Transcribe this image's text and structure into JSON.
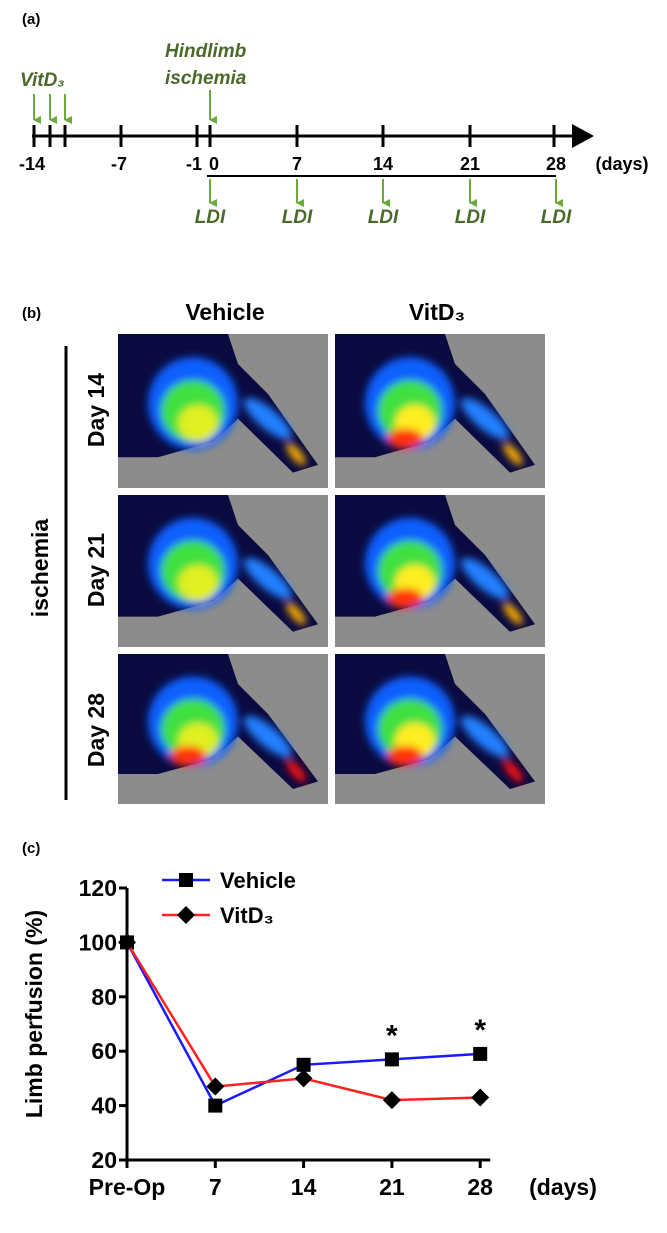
{
  "panel_a": {
    "label": "(a)",
    "vitd": "VitD₃",
    "hindlimb": "Hindlimb",
    "ischemia": "ischemia",
    "ticks": [
      "-14",
      "-7",
      "-1",
      "0",
      "7",
      "14",
      "21",
      "28"
    ],
    "unit": "(days)",
    "ldi": [
      "LDI",
      "LDI",
      "LDI",
      "LDI",
      "LDI"
    ]
  },
  "panel_b": {
    "label": "(b)",
    "columns": [
      "Vehicle",
      "VitD₃"
    ],
    "group": "ischemia",
    "rows": [
      "Day 14",
      "Day 21",
      "Day 28"
    ]
  },
  "panel_c": {
    "label": "(c)"
  },
  "chart_data": {
    "type": "line",
    "y_label": "Limb perfusion (%)",
    "x_label": "(days)",
    "categories": [
      "Pre-Op",
      "7",
      "14",
      "21",
      "28"
    ],
    "series": [
      {
        "name": "Vehicle",
        "color": "#1a1aff",
        "marker": "square",
        "values": [
          100,
          40,
          55,
          57,
          59
        ]
      },
      {
        "name": "VitD₃",
        "color": "#ff2020",
        "marker": "diamond",
        "values": [
          100,
          47,
          50,
          42,
          43
        ]
      }
    ],
    "ylim": [
      20,
      120
    ],
    "yticks": [
      20,
      40,
      60,
      80,
      100,
      120
    ],
    "annotations": [
      "*",
      "*"
    ],
    "legend": "upper left"
  }
}
